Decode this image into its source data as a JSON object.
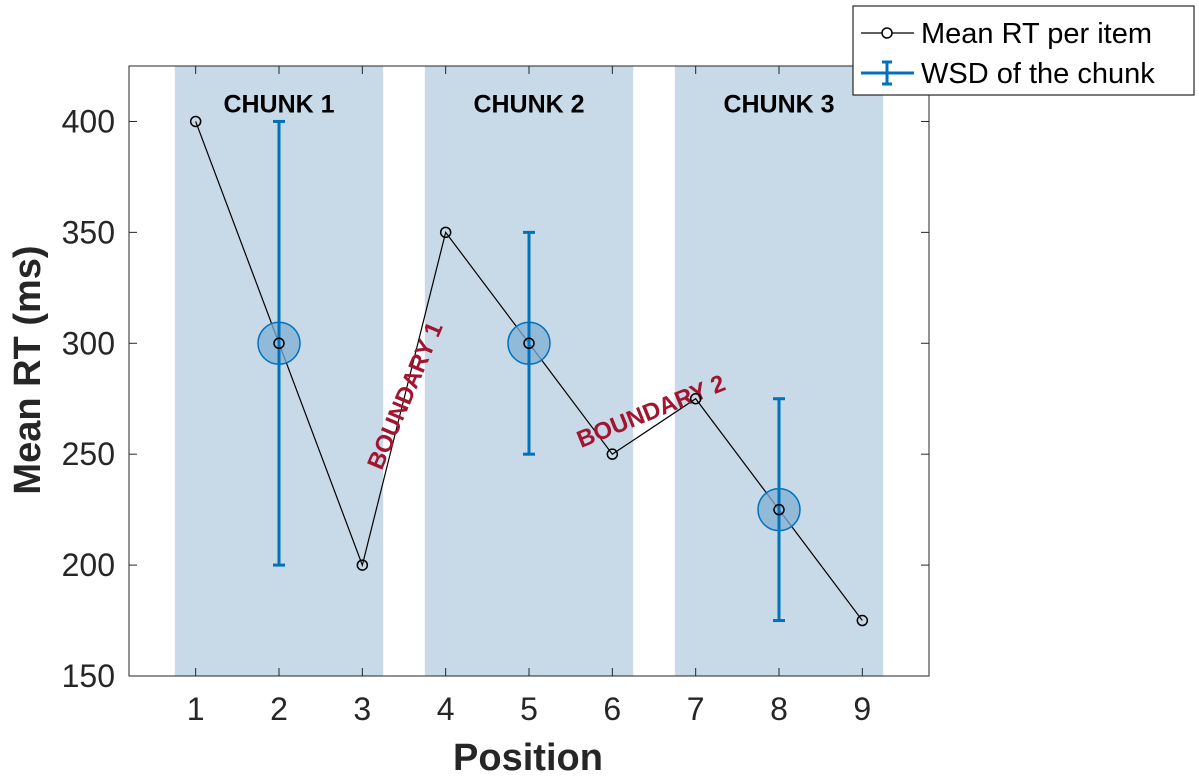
{
  "chart_data": {
    "type": "line",
    "xlabel": "Position",
    "ylabel": "Mean RT (ms)",
    "xlim": [
      0.2,
      9.8
    ],
    "ylim": [
      150,
      425
    ],
    "xticks": [
      1,
      2,
      3,
      4,
      5,
      6,
      7,
      8,
      9
    ],
    "xtick_labels": [
      "1",
      "2",
      "3",
      "4",
      "5",
      "6",
      "7",
      "8",
      "9"
    ],
    "yticks": [
      150,
      200,
      250,
      300,
      350,
      400
    ],
    "ytick_labels": [
      "150",
      "200",
      "250",
      "300",
      "350",
      "400"
    ],
    "grid": false,
    "legend_placement": "outside top-right",
    "series": [
      {
        "name": "Mean RT per item",
        "kind": "line-with-markers",
        "x": [
          1,
          2,
          3,
          4,
          5,
          6,
          7,
          8,
          9
        ],
        "y": [
          400,
          300,
          200,
          350,
          300,
          250,
          275,
          225,
          175
        ],
        "color": "#000000"
      },
      {
        "name": "WSD of the chunk",
        "kind": "errorbar",
        "x": [
          2,
          5,
          8
        ],
        "y": [
          300,
          300,
          225
        ],
        "low": [
          200,
          250,
          175
        ],
        "high": [
          400,
          350,
          275
        ],
        "color": "#0072bd"
      }
    ],
    "chunks": [
      {
        "label": "CHUNK 1",
        "x_from": 0.75,
        "x_to": 3.25
      },
      {
        "label": "CHUNK 2",
        "x_from": 3.75,
        "x_to": 6.25
      },
      {
        "label": "CHUNK 3",
        "x_from": 6.75,
        "x_to": 9.25
      }
    ],
    "boundaries": [
      {
        "label": "BOUNDARY 1",
        "x_at": 3.6,
        "y_at": 275
      },
      {
        "label": "BOUNDARY 2",
        "x_at": 6.5,
        "y_at": 266
      }
    ],
    "colors": {
      "chunk_fill": "#c8d9e7",
      "boundary_text": "#a2142f",
      "errorbar": "#0072bd",
      "mean_marker_fill": "#7faed3",
      "axis": "#262626"
    }
  }
}
